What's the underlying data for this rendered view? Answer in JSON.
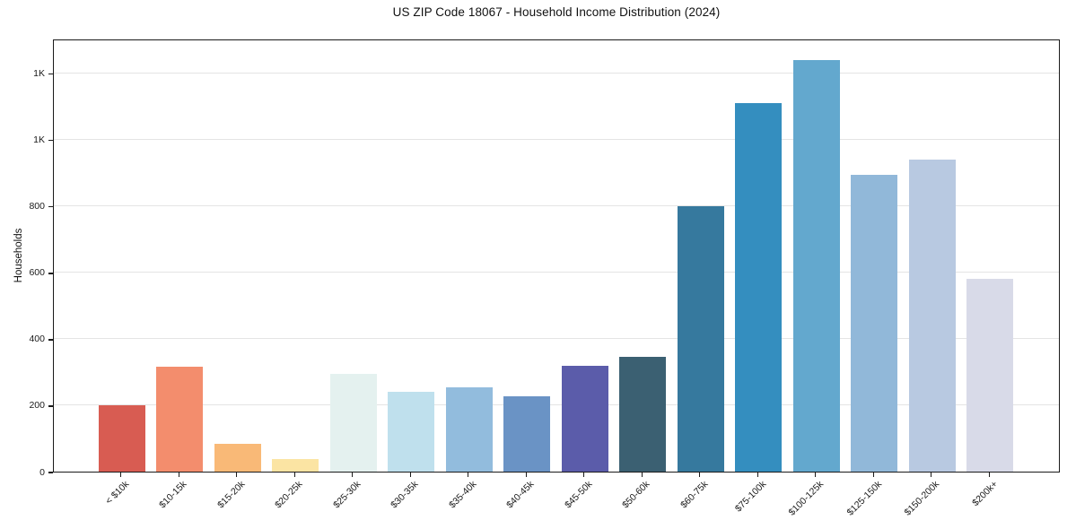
{
  "title": "US ZIP Code 18067 - Household Income Distribution (2024)",
  "chart_data": {
    "type": "bar",
    "title": "US ZIP Code 18067 - Household Income Distribution (2024)",
    "xlabel": "",
    "ylabel": "Households",
    "categories": [
      "< $10k",
      "$10-15k",
      "$15-20k",
      "$20-25k",
      "$25-30k",
      "$30-35k",
      "$35-40k",
      "$40-45k",
      "$45-50k",
      "$50-60k",
      "$60-75k",
      "$75-100k",
      "$100-125k",
      "$125-150k",
      "$150-200k",
      "$200k+"
    ],
    "values": [
      200,
      315,
      85,
      38,
      295,
      240,
      255,
      228,
      318,
      345,
      800,
      1110,
      1240,
      895,
      940,
      580
    ],
    "bar_colors": [
      "#d85c52",
      "#f38d6d",
      "#f9b977",
      "#fbe4a3",
      "#e4f1ef",
      "#bfe0ed",
      "#92bcdd",
      "#6a93c5",
      "#5b5caa",
      "#3b6072",
      "#36799e",
      "#348ebf",
      "#63a8ce",
      "#91b8d9",
      "#b8c9e1",
      "#d8dae8"
    ],
    "yticks": {
      "values": [
        0,
        200,
        400,
        600,
        800,
        1000,
        1200
      ],
      "labels": [
        "0",
        "200",
        "400",
        "600",
        "800",
        "1K",
        "1K"
      ]
    },
    "ylim": [
      0,
      1305
    ],
    "grid": "horizontal",
    "gridline_color": "#e4e4e4",
    "spine_color": "#1a1a1a",
    "background": "#ffffff",
    "legend": "none"
  }
}
